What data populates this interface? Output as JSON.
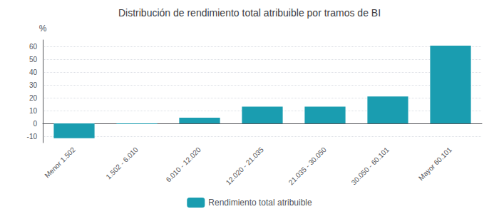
{
  "chart_data": {
    "type": "bar",
    "title": "Distribución de rendimiento total atribuible por tramos de BI",
    "categories": [
      "Menor 1.502",
      "1.502 - 6.010",
      "6.010 - 12.020",
      "12.020 - 21.035",
      "21.035 - 30.050",
      "30.050 - 60.101",
      "Mayor 60.101"
    ],
    "series": [
      {
        "name": "Rendimiento total atribuible",
        "color": "#1a9db0",
        "values": [
          -11.5,
          -0.5,
          4.5,
          13.0,
          13.0,
          21.0,
          60.5
        ]
      }
    ],
    "ylabel": "%",
    "ylim": [
      -15,
      65
    ],
    "yticks": [
      -10,
      0,
      10,
      20,
      30,
      40,
      50,
      60
    ],
    "grid": true,
    "legend": "bottom"
  }
}
